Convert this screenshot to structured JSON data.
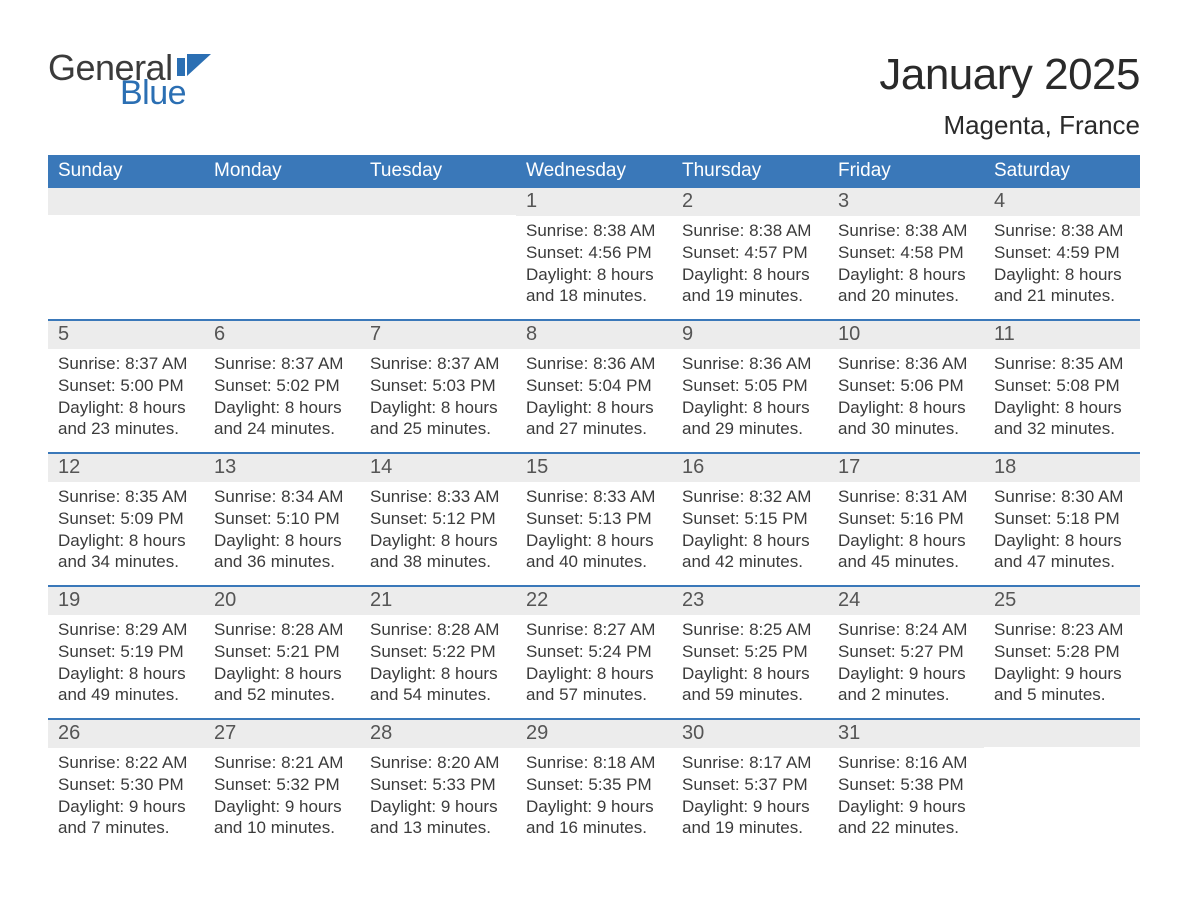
{
  "brand": {
    "name_part1": "General",
    "name_part2": "Blue",
    "flag_color": "#2b6fb3"
  },
  "header": {
    "month_title": "January 2025",
    "location": "Magenta, France"
  },
  "colors": {
    "header_bar": "#3a78b9",
    "header_text": "#ffffff",
    "daynum_bg": "#ececec",
    "daynum_text": "#555555",
    "body_text": "#3b3b3b",
    "week_divider": "#3a78b9",
    "page_bg": "#ffffff"
  },
  "day_names": [
    "Sunday",
    "Monday",
    "Tuesday",
    "Wednesday",
    "Thursday",
    "Friday",
    "Saturday"
  ],
  "weeks": [
    [
      null,
      null,
      null,
      {
        "n": "1",
        "sunrise": "Sunrise: 8:38 AM",
        "sunset": "Sunset: 4:56 PM",
        "dl1": "Daylight: 8 hours",
        "dl2": "and 18 minutes."
      },
      {
        "n": "2",
        "sunrise": "Sunrise: 8:38 AM",
        "sunset": "Sunset: 4:57 PM",
        "dl1": "Daylight: 8 hours",
        "dl2": "and 19 minutes."
      },
      {
        "n": "3",
        "sunrise": "Sunrise: 8:38 AM",
        "sunset": "Sunset: 4:58 PM",
        "dl1": "Daylight: 8 hours",
        "dl2": "and 20 minutes."
      },
      {
        "n": "4",
        "sunrise": "Sunrise: 8:38 AM",
        "sunset": "Sunset: 4:59 PM",
        "dl1": "Daylight: 8 hours",
        "dl2": "and 21 minutes."
      }
    ],
    [
      {
        "n": "5",
        "sunrise": "Sunrise: 8:37 AM",
        "sunset": "Sunset: 5:00 PM",
        "dl1": "Daylight: 8 hours",
        "dl2": "and 23 minutes."
      },
      {
        "n": "6",
        "sunrise": "Sunrise: 8:37 AM",
        "sunset": "Sunset: 5:02 PM",
        "dl1": "Daylight: 8 hours",
        "dl2": "and 24 minutes."
      },
      {
        "n": "7",
        "sunrise": "Sunrise: 8:37 AM",
        "sunset": "Sunset: 5:03 PM",
        "dl1": "Daylight: 8 hours",
        "dl2": "and 25 minutes."
      },
      {
        "n": "8",
        "sunrise": "Sunrise: 8:36 AM",
        "sunset": "Sunset: 5:04 PM",
        "dl1": "Daylight: 8 hours",
        "dl2": "and 27 minutes."
      },
      {
        "n": "9",
        "sunrise": "Sunrise: 8:36 AM",
        "sunset": "Sunset: 5:05 PM",
        "dl1": "Daylight: 8 hours",
        "dl2": "and 29 minutes."
      },
      {
        "n": "10",
        "sunrise": "Sunrise: 8:36 AM",
        "sunset": "Sunset: 5:06 PM",
        "dl1": "Daylight: 8 hours",
        "dl2": "and 30 minutes."
      },
      {
        "n": "11",
        "sunrise": "Sunrise: 8:35 AM",
        "sunset": "Sunset: 5:08 PM",
        "dl1": "Daylight: 8 hours",
        "dl2": "and 32 minutes."
      }
    ],
    [
      {
        "n": "12",
        "sunrise": "Sunrise: 8:35 AM",
        "sunset": "Sunset: 5:09 PM",
        "dl1": "Daylight: 8 hours",
        "dl2": "and 34 minutes."
      },
      {
        "n": "13",
        "sunrise": "Sunrise: 8:34 AM",
        "sunset": "Sunset: 5:10 PM",
        "dl1": "Daylight: 8 hours",
        "dl2": "and 36 minutes."
      },
      {
        "n": "14",
        "sunrise": "Sunrise: 8:33 AM",
        "sunset": "Sunset: 5:12 PM",
        "dl1": "Daylight: 8 hours",
        "dl2": "and 38 minutes."
      },
      {
        "n": "15",
        "sunrise": "Sunrise: 8:33 AM",
        "sunset": "Sunset: 5:13 PM",
        "dl1": "Daylight: 8 hours",
        "dl2": "and 40 minutes."
      },
      {
        "n": "16",
        "sunrise": "Sunrise: 8:32 AM",
        "sunset": "Sunset: 5:15 PM",
        "dl1": "Daylight: 8 hours",
        "dl2": "and 42 minutes."
      },
      {
        "n": "17",
        "sunrise": "Sunrise: 8:31 AM",
        "sunset": "Sunset: 5:16 PM",
        "dl1": "Daylight: 8 hours",
        "dl2": "and 45 minutes."
      },
      {
        "n": "18",
        "sunrise": "Sunrise: 8:30 AM",
        "sunset": "Sunset: 5:18 PM",
        "dl1": "Daylight: 8 hours",
        "dl2": "and 47 minutes."
      }
    ],
    [
      {
        "n": "19",
        "sunrise": "Sunrise: 8:29 AM",
        "sunset": "Sunset: 5:19 PM",
        "dl1": "Daylight: 8 hours",
        "dl2": "and 49 minutes."
      },
      {
        "n": "20",
        "sunrise": "Sunrise: 8:28 AM",
        "sunset": "Sunset: 5:21 PM",
        "dl1": "Daylight: 8 hours",
        "dl2": "and 52 minutes."
      },
      {
        "n": "21",
        "sunrise": "Sunrise: 8:28 AM",
        "sunset": "Sunset: 5:22 PM",
        "dl1": "Daylight: 8 hours",
        "dl2": "and 54 minutes."
      },
      {
        "n": "22",
        "sunrise": "Sunrise: 8:27 AM",
        "sunset": "Sunset: 5:24 PM",
        "dl1": "Daylight: 8 hours",
        "dl2": "and 57 minutes."
      },
      {
        "n": "23",
        "sunrise": "Sunrise: 8:25 AM",
        "sunset": "Sunset: 5:25 PM",
        "dl1": "Daylight: 8 hours",
        "dl2": "and 59 minutes."
      },
      {
        "n": "24",
        "sunrise": "Sunrise: 8:24 AM",
        "sunset": "Sunset: 5:27 PM",
        "dl1": "Daylight: 9 hours",
        "dl2": "and 2 minutes."
      },
      {
        "n": "25",
        "sunrise": "Sunrise: 8:23 AM",
        "sunset": "Sunset: 5:28 PM",
        "dl1": "Daylight: 9 hours",
        "dl2": "and 5 minutes."
      }
    ],
    [
      {
        "n": "26",
        "sunrise": "Sunrise: 8:22 AM",
        "sunset": "Sunset: 5:30 PM",
        "dl1": "Daylight: 9 hours",
        "dl2": "and 7 minutes."
      },
      {
        "n": "27",
        "sunrise": "Sunrise: 8:21 AM",
        "sunset": "Sunset: 5:32 PM",
        "dl1": "Daylight: 9 hours",
        "dl2": "and 10 minutes."
      },
      {
        "n": "28",
        "sunrise": "Sunrise: 8:20 AM",
        "sunset": "Sunset: 5:33 PM",
        "dl1": "Daylight: 9 hours",
        "dl2": "and 13 minutes."
      },
      {
        "n": "29",
        "sunrise": "Sunrise: 8:18 AM",
        "sunset": "Sunset: 5:35 PM",
        "dl1": "Daylight: 9 hours",
        "dl2": "and 16 minutes."
      },
      {
        "n": "30",
        "sunrise": "Sunrise: 8:17 AM",
        "sunset": "Sunset: 5:37 PM",
        "dl1": "Daylight: 9 hours",
        "dl2": "and 19 minutes."
      },
      {
        "n": "31",
        "sunrise": "Sunrise: 8:16 AM",
        "sunset": "Sunset: 5:38 PM",
        "dl1": "Daylight: 9 hours",
        "dl2": "and 22 minutes."
      },
      null
    ]
  ]
}
